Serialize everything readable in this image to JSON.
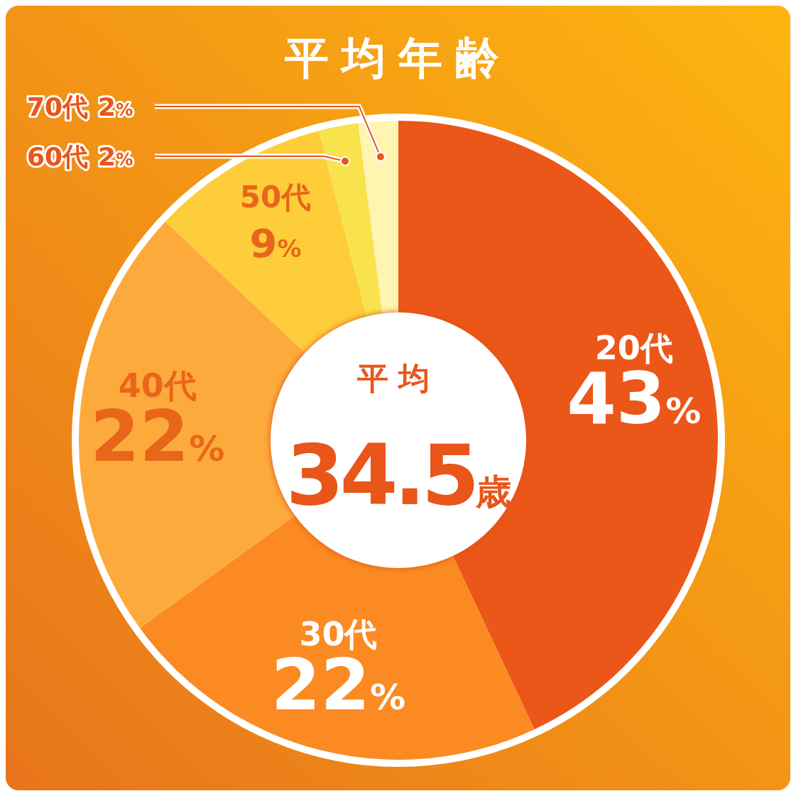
{
  "chart_data": {
    "type": "donut",
    "title": "平均年齢",
    "categories": [
      "20代",
      "30代",
      "40代",
      "50代",
      "60代",
      "70代"
    ],
    "values": [
      43,
      22,
      22,
      9,
      2,
      2
    ],
    "value_labels": [
      "43%",
      "22%",
      "22%",
      "9%",
      "2%",
      "2%"
    ],
    "colors": [
      "#eb5718",
      "#fb8a22",
      "#fdaa3c",
      "#fecd3a",
      "#f8e34c",
      "#fff4b0"
    ],
    "annotations": [
      "平均",
      "34.5歳"
    ]
  }
}
